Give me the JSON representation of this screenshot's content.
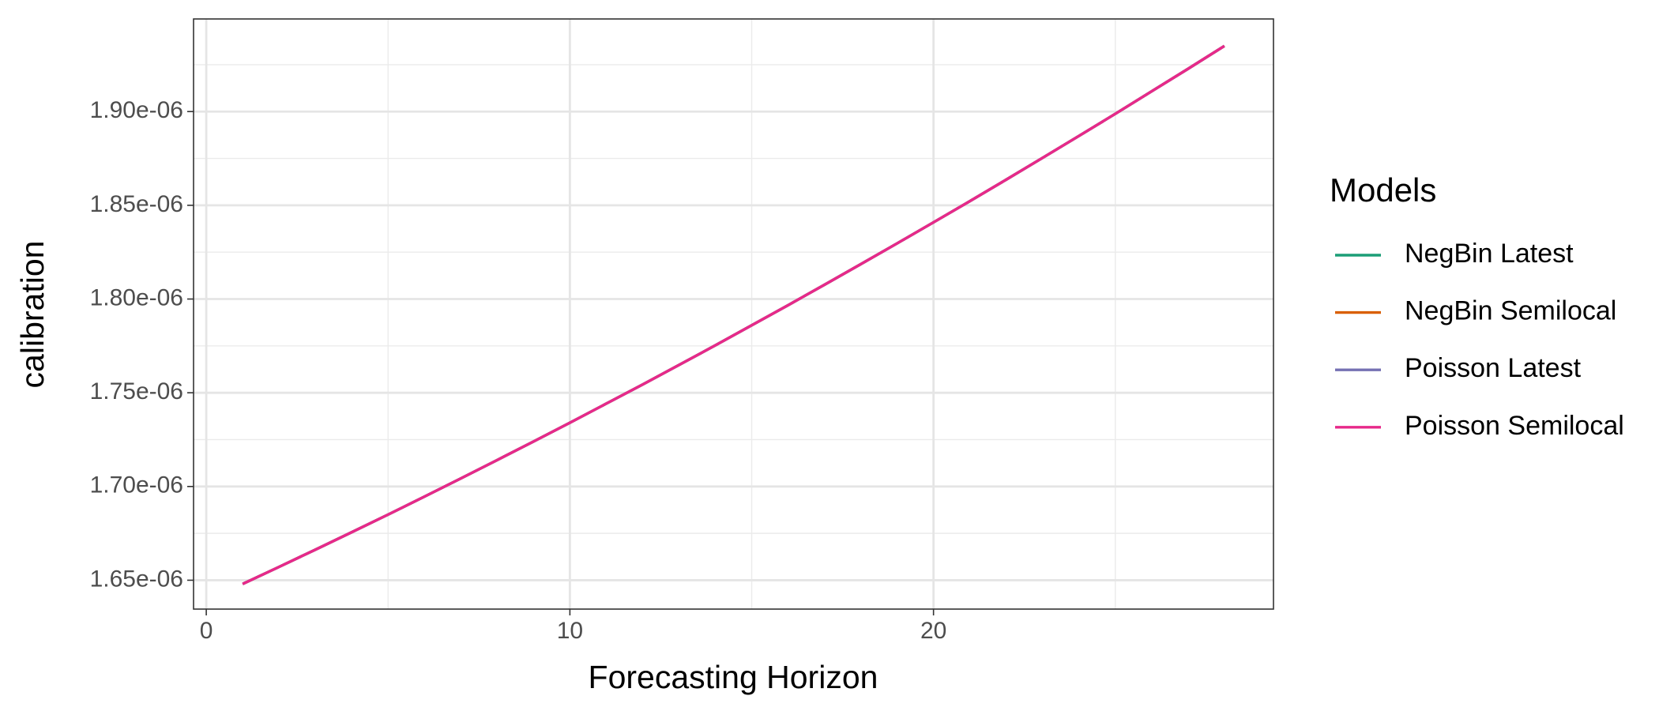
{
  "chart_data": {
    "type": "line",
    "x_label": "Forecasting Horizon",
    "y_label": "calibration",
    "legend_title": "Models",
    "legend_position": "right",
    "grid": true,
    "x": [
      1,
      2,
      3,
      4,
      5,
      6,
      7,
      8,
      9,
      10,
      11,
      12,
      13,
      14,
      15,
      16,
      17,
      18,
      19,
      20,
      21,
      22,
      23,
      24,
      25,
      26,
      27,
      28
    ],
    "series": [
      {
        "name": "NegBin Latest",
        "color": "#1b9e77",
        "values": [
          1.648e-06,
          1.6571e-06,
          1.6663e-06,
          1.6756e-06,
          1.685e-06,
          1.6946e-06,
          1.7043e-06,
          1.7141e-06,
          1.724e-06,
          1.734e-06,
          1.7442e-06,
          1.7544e-06,
          1.7648e-06,
          1.7753e-06,
          1.786e-06,
          1.7967e-06,
          1.8076e-06,
          1.8186e-06,
          1.8297e-06,
          1.8409e-06,
          1.8522e-06,
          1.8637e-06,
          1.8753e-06,
          1.887e-06,
          1.8988e-06,
          1.9108e-06,
          1.9228e-06,
          1.935e-06
        ]
      },
      {
        "name": "NegBin Semilocal",
        "color": "#d95f02",
        "values": [
          1.648e-06,
          1.6571e-06,
          1.6663e-06,
          1.6756e-06,
          1.685e-06,
          1.6946e-06,
          1.7043e-06,
          1.7141e-06,
          1.724e-06,
          1.734e-06,
          1.7442e-06,
          1.7544e-06,
          1.7648e-06,
          1.7753e-06,
          1.786e-06,
          1.7967e-06,
          1.8076e-06,
          1.8186e-06,
          1.8297e-06,
          1.8409e-06,
          1.8522e-06,
          1.8637e-06,
          1.8753e-06,
          1.887e-06,
          1.8988e-06,
          1.9108e-06,
          1.9228e-06,
          1.935e-06
        ]
      },
      {
        "name": "Poisson Latest",
        "color": "#7570b3",
        "values": [
          1.648e-06,
          1.6571e-06,
          1.6663e-06,
          1.6756e-06,
          1.685e-06,
          1.6946e-06,
          1.7043e-06,
          1.7141e-06,
          1.724e-06,
          1.734e-06,
          1.7442e-06,
          1.7544e-06,
          1.7648e-06,
          1.7753e-06,
          1.786e-06,
          1.7967e-06,
          1.8076e-06,
          1.8186e-06,
          1.8297e-06,
          1.8409e-06,
          1.8522e-06,
          1.8637e-06,
          1.8753e-06,
          1.887e-06,
          1.8988e-06,
          1.9108e-06,
          1.9228e-06,
          1.935e-06
        ]
      },
      {
        "name": "Poisson Semilocal",
        "color": "#e7298a",
        "values": [
          1.648e-06,
          1.6571e-06,
          1.6663e-06,
          1.6756e-06,
          1.685e-06,
          1.6946e-06,
          1.7043e-06,
          1.7141e-06,
          1.724e-06,
          1.734e-06,
          1.7442e-06,
          1.7544e-06,
          1.7648e-06,
          1.7753e-06,
          1.786e-06,
          1.7967e-06,
          1.8076e-06,
          1.8186e-06,
          1.8297e-06,
          1.8409e-06,
          1.8522e-06,
          1.8637e-06,
          1.8753e-06,
          1.887e-06,
          1.8988e-06,
          1.9108e-06,
          1.9228e-06,
          1.935e-06
        ]
      }
    ],
    "xlim": [
      -0.35,
      29.35
    ],
    "xticks": [
      0,
      10,
      20
    ],
    "x_minor_grid": [
      5,
      15,
      25
    ],
    "ylim": [
      1.6346e-06,
      1.9494e-06
    ],
    "yticks": [
      {
        "value": 1.65e-06,
        "label": "1.65e-06"
      },
      {
        "value": 1.7e-06,
        "label": "1.70e-06"
      },
      {
        "value": 1.75e-06,
        "label": "1.75e-06"
      },
      {
        "value": 1.8e-06,
        "label": "1.80e-06"
      },
      {
        "value": 1.85e-06,
        "label": "1.85e-06"
      },
      {
        "value": 1.9e-06,
        "label": "1.90e-06"
      }
    ],
    "y_minor_grid": [
      1.675e-06,
      1.725e-06,
      1.775e-06,
      1.825e-06,
      1.875e-06,
      1.925e-06
    ]
  }
}
